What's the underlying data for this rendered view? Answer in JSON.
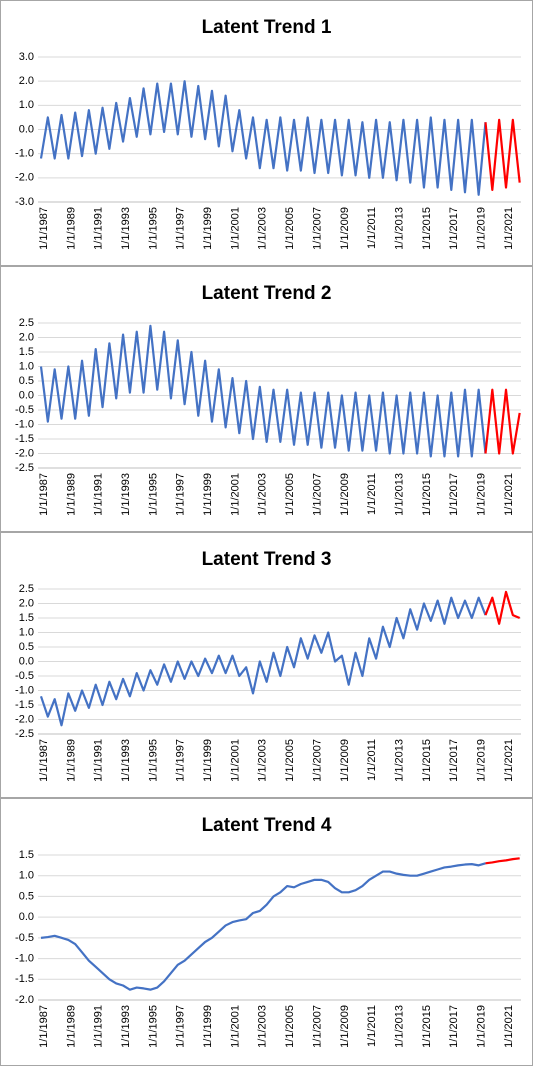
{
  "chart_data": [
    {
      "type": "line",
      "title": "Latent Trend 1",
      "grid": true,
      "categories": [
        "1/1/1987",
        null,
        null,
        null,
        "1/1/1989",
        null,
        null,
        null,
        "1/1/1991",
        null,
        null,
        null,
        "1/1/1993",
        null,
        null,
        null,
        "1/1/1995",
        null,
        null,
        null,
        "1/1/1997",
        null,
        null,
        null,
        "1/1/1999",
        null,
        null,
        null,
        "1/1/2001",
        null,
        null,
        null,
        "1/1/2003",
        null,
        null,
        null,
        "1/1/2005",
        null,
        null,
        null,
        "1/1/2007",
        null,
        null,
        null,
        "1/1/2009",
        null,
        null,
        null,
        "1/1/2011",
        null,
        null,
        null,
        "1/1/2013",
        null,
        null,
        null,
        "1/1/2015",
        null,
        null,
        null,
        "1/1/2017",
        null,
        null,
        null,
        "1/1/2019",
        null,
        null,
        null,
        "1/1/2021",
        null,
        null
      ],
      "ylim": [
        -3,
        3
      ],
      "yticks": [
        {
          "value": 3,
          "label": "3.0"
        },
        {
          "value": 2,
          "label": "2.0"
        },
        {
          "value": 1,
          "label": "1.0"
        },
        {
          "value": 0,
          "label": "0.0"
        },
        {
          "value": -1,
          "label": "-1.0"
        },
        {
          "value": -2,
          "label": "-2.0"
        },
        {
          "value": -3,
          "label": "-3.0"
        }
      ],
      "series": [
        {
          "color": "#4472c4",
          "values": [
            -1.2,
            0.5,
            -1.2,
            0.6,
            -1.2,
            0.7,
            -1.1,
            0.8,
            -1.0,
            0.9,
            -0.8,
            1.1,
            -0.5,
            1.3,
            -0.3,
            1.7,
            -0.2,
            1.9,
            -0.1,
            1.9,
            -0.2,
            2.0,
            -0.3,
            1.8,
            -0.4,
            1.6,
            -0.7,
            1.4,
            -0.9,
            0.8,
            -1.2,
            0.5,
            -1.6,
            0.4,
            -1.6,
            0.5,
            -1.7,
            0.4,
            -1.7,
            0.5,
            -1.8,
            0.4,
            -1.8,
            0.4,
            -1.9,
            0.4,
            -1.9,
            0.3,
            -2.0,
            0.4,
            -2.0,
            0.3,
            -2.1,
            0.4,
            -2.2,
            0.4,
            -2.4,
            0.5,
            -2.4,
            0.4,
            -2.5,
            0.4,
            -2.6,
            0.4,
            -2.7,
            0.3,
            null,
            null,
            null,
            null,
            null
          ]
        },
        {
          "color": "#ff0000",
          "values": [
            null,
            null,
            null,
            null,
            null,
            null,
            null,
            null,
            null,
            null,
            null,
            null,
            null,
            null,
            null,
            null,
            null,
            null,
            null,
            null,
            null,
            null,
            null,
            null,
            null,
            null,
            null,
            null,
            null,
            null,
            null,
            null,
            null,
            null,
            null,
            null,
            null,
            null,
            null,
            null,
            null,
            null,
            null,
            null,
            null,
            null,
            null,
            null,
            null,
            null,
            null,
            null,
            null,
            null,
            null,
            null,
            null,
            null,
            null,
            null,
            null,
            null,
            null,
            null,
            null,
            0.3,
            -2.5,
            0.4,
            -2.4,
            0.4,
            -2.2
          ]
        }
      ]
    },
    {
      "type": "line",
      "title": "Latent Trend 2",
      "grid": true,
      "categories": [
        "1/1/1987",
        null,
        null,
        null,
        "1/1/1989",
        null,
        null,
        null,
        "1/1/1991",
        null,
        null,
        null,
        "1/1/1993",
        null,
        null,
        null,
        "1/1/1995",
        null,
        null,
        null,
        "1/1/1997",
        null,
        null,
        null,
        "1/1/1999",
        null,
        null,
        null,
        "1/1/2001",
        null,
        null,
        null,
        "1/1/2003",
        null,
        null,
        null,
        "1/1/2005",
        null,
        null,
        null,
        "1/1/2007",
        null,
        null,
        null,
        "1/1/2009",
        null,
        null,
        null,
        "1/1/2011",
        null,
        null,
        null,
        "1/1/2013",
        null,
        null,
        null,
        "1/1/2015",
        null,
        null,
        null,
        "1/1/2017",
        null,
        null,
        null,
        "1/1/2019",
        null,
        null,
        null,
        "1/1/2021",
        null,
        null
      ],
      "ylim": [
        -2.5,
        2.5
      ],
      "yticks": [
        2.5,
        {
          "value": 2,
          "label": "2.0"
        },
        1.5,
        {
          "value": 1,
          "label": "1.0"
        },
        0.5,
        {
          "value": 0,
          "label": "0.0"
        },
        -0.5,
        {
          "value": -1,
          "label": "-1.0"
        },
        -1.5,
        {
          "value": -2,
          "label": "-2.0"
        },
        -2.5
      ],
      "series": [
        {
          "color": "#4472c4",
          "values": [
            1.0,
            -0.9,
            0.9,
            -0.8,
            1.0,
            -0.8,
            1.2,
            -0.7,
            1.6,
            -0.4,
            1.8,
            -0.1,
            2.1,
            0.1,
            2.2,
            0.1,
            2.4,
            0.2,
            2.2,
            -0.1,
            1.9,
            -0.3,
            1.5,
            -0.7,
            1.2,
            -0.9,
            0.9,
            -1.1,
            0.6,
            -1.3,
            0.5,
            -1.5,
            0.3,
            -1.6,
            0.2,
            -1.6,
            0.2,
            -1.7,
            0.1,
            -1.7,
            0.1,
            -1.8,
            0.1,
            -1.8,
            0.0,
            -1.9,
            0.1,
            -1.9,
            0.0,
            -1.9,
            0.1,
            -2.0,
            0.0,
            -2.0,
            0.1,
            -2.0,
            0.1,
            -2.1,
            0.0,
            -2.1,
            0.1,
            -2.1,
            0.2,
            -2.1,
            0.2,
            -2.0,
            null,
            null,
            null,
            null,
            null
          ]
        },
        {
          "color": "#ff0000",
          "values": [
            null,
            null,
            null,
            null,
            null,
            null,
            null,
            null,
            null,
            null,
            null,
            null,
            null,
            null,
            null,
            null,
            null,
            null,
            null,
            null,
            null,
            null,
            null,
            null,
            null,
            null,
            null,
            null,
            null,
            null,
            null,
            null,
            null,
            null,
            null,
            null,
            null,
            null,
            null,
            null,
            null,
            null,
            null,
            null,
            null,
            null,
            null,
            null,
            null,
            null,
            null,
            null,
            null,
            null,
            null,
            null,
            null,
            null,
            null,
            null,
            null,
            null,
            null,
            null,
            null,
            -2.0,
            0.2,
            -2.0,
            0.2,
            -2.0,
            -0.6
          ]
        }
      ]
    },
    {
      "type": "line",
      "title": "Latent Trend 3",
      "grid": true,
      "categories": [
        "1/1/1987",
        null,
        null,
        null,
        "1/1/1989",
        null,
        null,
        null,
        "1/1/1991",
        null,
        null,
        null,
        "1/1/1993",
        null,
        null,
        null,
        "1/1/1995",
        null,
        null,
        null,
        "1/1/1997",
        null,
        null,
        null,
        "1/1/1999",
        null,
        null,
        null,
        "1/1/2001",
        null,
        null,
        null,
        "1/1/2003",
        null,
        null,
        null,
        "1/1/2005",
        null,
        null,
        null,
        "1/1/2007",
        null,
        null,
        null,
        "1/1/2009",
        null,
        null,
        null,
        "1/1/2011",
        null,
        null,
        null,
        "1/1/2013",
        null,
        null,
        null,
        "1/1/2015",
        null,
        null,
        null,
        "1/1/2017",
        null,
        null,
        null,
        "1/1/2019",
        null,
        null,
        null,
        "1/1/2021",
        null,
        null
      ],
      "ylim": [
        -2.5,
        2.5
      ],
      "yticks": [
        2.5,
        {
          "value": 2,
          "label": "2.0"
        },
        1.5,
        {
          "value": 1,
          "label": "1.0"
        },
        0.5,
        {
          "value": 0,
          "label": "0.0"
        },
        -0.5,
        {
          "value": -1,
          "label": "-1.0"
        },
        -1.5,
        {
          "value": -2,
          "label": "-2.0"
        },
        -2.5
      ],
      "series": [
        {
          "color": "#4472c4",
          "values": [
            -1.2,
            -1.9,
            -1.3,
            -2.2,
            -1.1,
            -1.7,
            -1.0,
            -1.6,
            -0.8,
            -1.5,
            -0.7,
            -1.3,
            -0.6,
            -1.2,
            -0.4,
            -1.0,
            -0.3,
            -0.8,
            -0.1,
            -0.7,
            0.0,
            -0.6,
            0.0,
            -0.5,
            0.1,
            -0.4,
            0.2,
            -0.4,
            0.2,
            -0.5,
            -0.2,
            -1.1,
            0.0,
            -0.7,
            0.3,
            -0.5,
            0.5,
            -0.2,
            0.8,
            0.1,
            0.9,
            0.3,
            1.0,
            0.0,
            0.2,
            -0.8,
            0.3,
            -0.5,
            0.8,
            0.1,
            1.2,
            0.5,
            1.5,
            0.8,
            1.8,
            1.1,
            2.0,
            1.4,
            2.1,
            1.3,
            2.2,
            1.5,
            2.1,
            1.5,
            2.2,
            1.6,
            null,
            null,
            null,
            null,
            null
          ]
        },
        {
          "color": "#ff0000",
          "values": [
            null,
            null,
            null,
            null,
            null,
            null,
            null,
            null,
            null,
            null,
            null,
            null,
            null,
            null,
            null,
            null,
            null,
            null,
            null,
            null,
            null,
            null,
            null,
            null,
            null,
            null,
            null,
            null,
            null,
            null,
            null,
            null,
            null,
            null,
            null,
            null,
            null,
            null,
            null,
            null,
            null,
            null,
            null,
            null,
            null,
            null,
            null,
            null,
            null,
            null,
            null,
            null,
            null,
            null,
            null,
            null,
            null,
            null,
            null,
            null,
            null,
            null,
            null,
            null,
            null,
            1.6,
            2.2,
            1.3,
            2.4,
            1.6,
            1.5
          ]
        }
      ]
    },
    {
      "type": "line",
      "title": "Latent Trend 4",
      "grid": true,
      "categories": [
        "1/1/1987",
        null,
        null,
        null,
        "1/1/1989",
        null,
        null,
        null,
        "1/1/1991",
        null,
        null,
        null,
        "1/1/1993",
        null,
        null,
        null,
        "1/1/1995",
        null,
        null,
        null,
        "1/1/1997",
        null,
        null,
        null,
        "1/1/1999",
        null,
        null,
        null,
        "1/1/2001",
        null,
        null,
        null,
        "1/1/2003",
        null,
        null,
        null,
        "1/1/2005",
        null,
        null,
        null,
        "1/1/2007",
        null,
        null,
        null,
        "1/1/2009",
        null,
        null,
        null,
        "1/1/2011",
        null,
        null,
        null,
        "1/1/2013",
        null,
        null,
        null,
        "1/1/2015",
        null,
        null,
        null,
        "1/1/2017",
        null,
        null,
        null,
        "1/1/2019",
        null,
        null,
        null,
        "1/1/2021",
        null,
        null
      ],
      "ylim": [
        -2,
        1.5
      ],
      "yticks": [
        1.5,
        {
          "value": 1,
          "label": "1.0"
        },
        0.5,
        {
          "value": 0,
          "label": "0.0"
        },
        -0.5,
        {
          "value": -1,
          "label": "-1.0"
        },
        -1.5,
        {
          "value": -2,
          "label": "-2.0"
        }
      ],
      "series": [
        {
          "color": "#4472c4",
          "values": [
            -0.5,
            -0.48,
            -0.45,
            -0.5,
            -0.55,
            -0.65,
            -0.85,
            -1.05,
            -1.2,
            -1.35,
            -1.5,
            -1.6,
            -1.65,
            -1.75,
            -1.7,
            -1.72,
            -1.75,
            -1.7,
            -1.55,
            -1.35,
            -1.15,
            -1.05,
            -0.9,
            -0.75,
            -0.6,
            -0.5,
            -0.35,
            -0.2,
            -0.12,
            -0.08,
            -0.05,
            0.1,
            0.15,
            0.3,
            0.5,
            0.6,
            0.75,
            0.72,
            0.8,
            0.85,
            0.9,
            0.9,
            0.85,
            0.7,
            0.6,
            0.6,
            0.65,
            0.75,
            0.9,
            1.0,
            1.1,
            1.1,
            1.05,
            1.02,
            1.0,
            1.0,
            1.05,
            1.1,
            1.15,
            1.2,
            1.22,
            1.25,
            1.27,
            1.28,
            1.25,
            1.3,
            null,
            null,
            null,
            null,
            null
          ]
        },
        {
          "color": "#ff0000",
          "values": [
            null,
            null,
            null,
            null,
            null,
            null,
            null,
            null,
            null,
            null,
            null,
            null,
            null,
            null,
            null,
            null,
            null,
            null,
            null,
            null,
            null,
            null,
            null,
            null,
            null,
            null,
            null,
            null,
            null,
            null,
            null,
            null,
            null,
            null,
            null,
            null,
            null,
            null,
            null,
            null,
            null,
            null,
            null,
            null,
            null,
            null,
            null,
            null,
            null,
            null,
            null,
            null,
            null,
            null,
            null,
            null,
            null,
            null,
            null,
            null,
            null,
            null,
            null,
            null,
            null,
            1.3,
            1.32,
            1.35,
            1.37,
            1.4,
            1.42
          ]
        }
      ]
    }
  ]
}
